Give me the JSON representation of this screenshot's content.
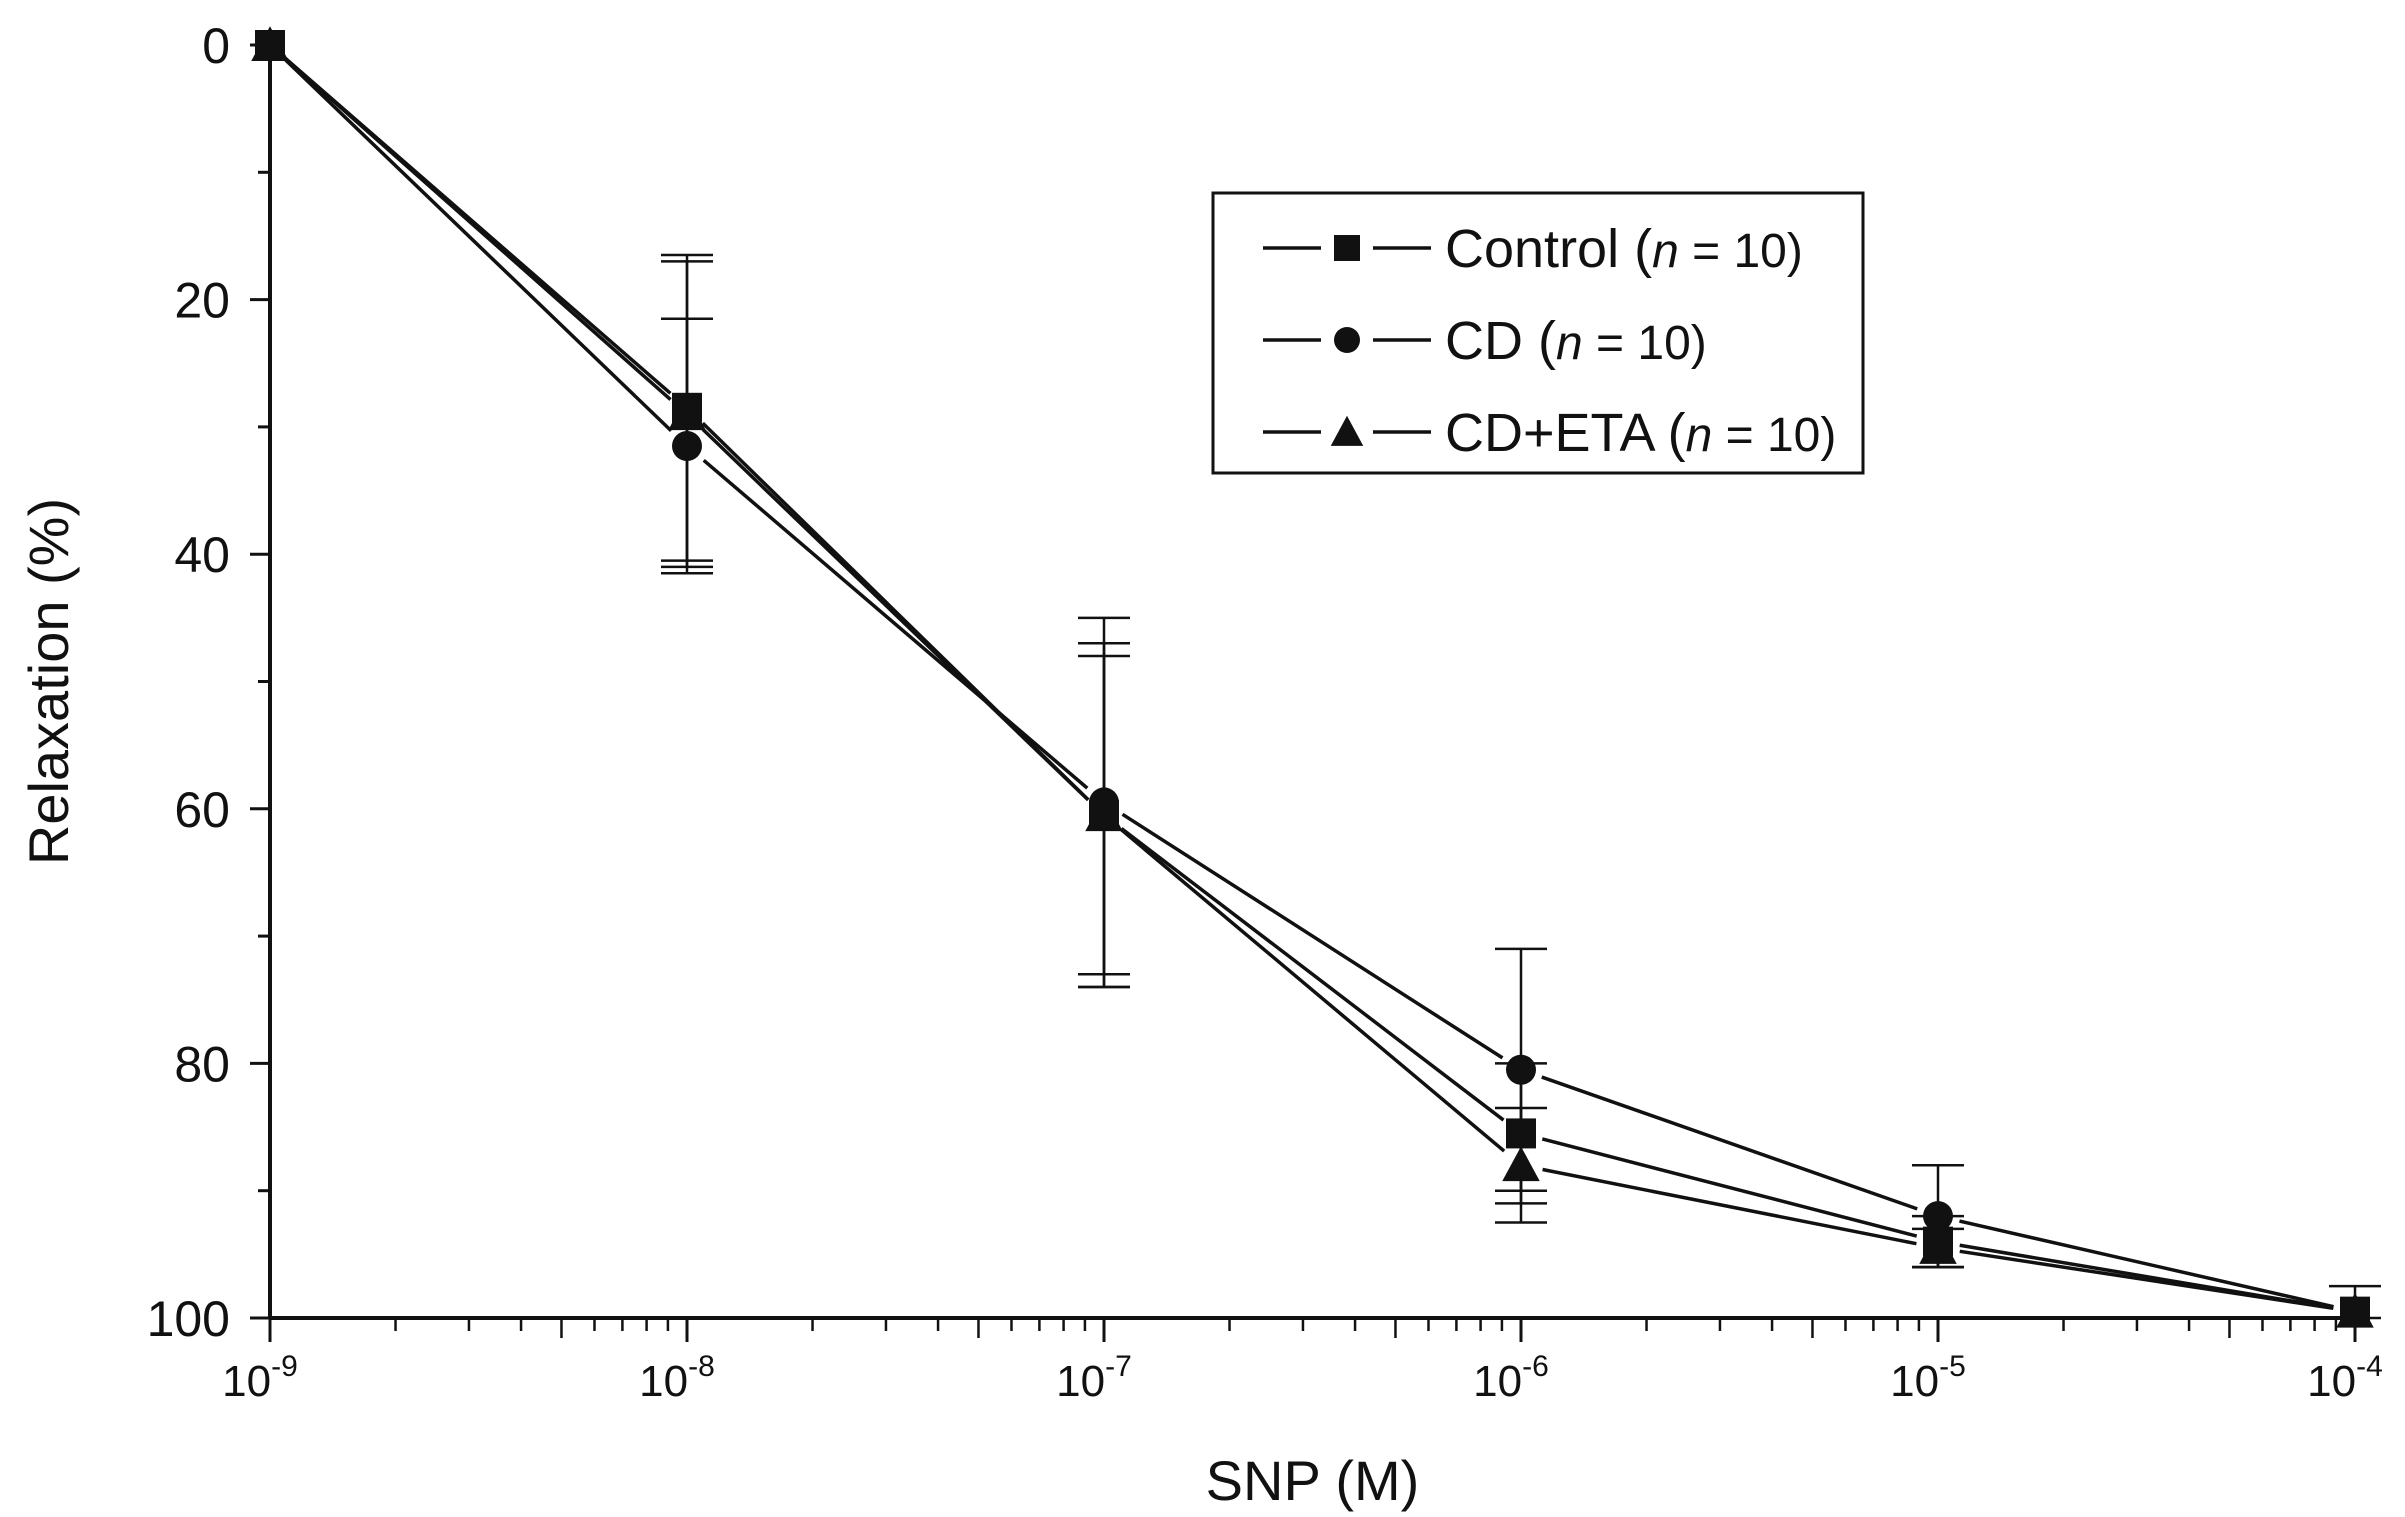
{
  "chart_data": {
    "type": "line",
    "title": "",
    "xlabel": "SNP (M)",
    "ylabel": "Relaxation (%)",
    "x_scale": "log",
    "x": [
      -9,
      -8,
      -7,
      -6,
      -5,
      -4
    ],
    "x_tick_labels": [
      {
        "base": "10",
        "exp": "-9"
      },
      {
        "base": "10",
        "exp": "-8"
      },
      {
        "base": "10",
        "exp": "-7"
      },
      {
        "base": "10",
        "exp": "-6"
      },
      {
        "base": "10",
        "exp": "-5"
      },
      {
        "base": "10",
        "exp": "-4"
      }
    ],
    "xlim": [
      -9,
      -4
    ],
    "ylim": [
      0,
      100
    ],
    "y_inverted": true,
    "y_ticks": [
      "0",
      "20",
      "40",
      "60",
      "80",
      "100"
    ],
    "y_tick_values": [
      0,
      20,
      40,
      60,
      80,
      100
    ],
    "legend_position": "top-right",
    "series": [
      {
        "name": "Control",
        "n_label": "n",
        "n_value": " = 10)",
        "marker": "square",
        "values": [
          0,
          28.5,
          60.5,
          85.5,
          94,
          99.5
        ],
        "errors": [
          0,
          12,
          13.5,
          5.5,
          2,
          0
        ]
      },
      {
        "name": "CD",
        "n_label": "n",
        "n_value": " = 10)",
        "marker": "circle",
        "values": [
          0,
          31.5,
          59.5,
          80.5,
          92,
          99.5
        ],
        "errors": [
          0,
          10,
          14.5,
          9.5,
          4,
          2
        ]
      },
      {
        "name": "CD+ETA",
        "n_label": "n",
        "n_value": " = 10)",
        "marker": "triangle",
        "values": [
          0,
          29,
          60.5,
          88,
          94.5,
          99.5
        ],
        "errors": [
          0,
          12,
          12.5,
          4.5,
          1.5,
          0
        ]
      }
    ]
  }
}
